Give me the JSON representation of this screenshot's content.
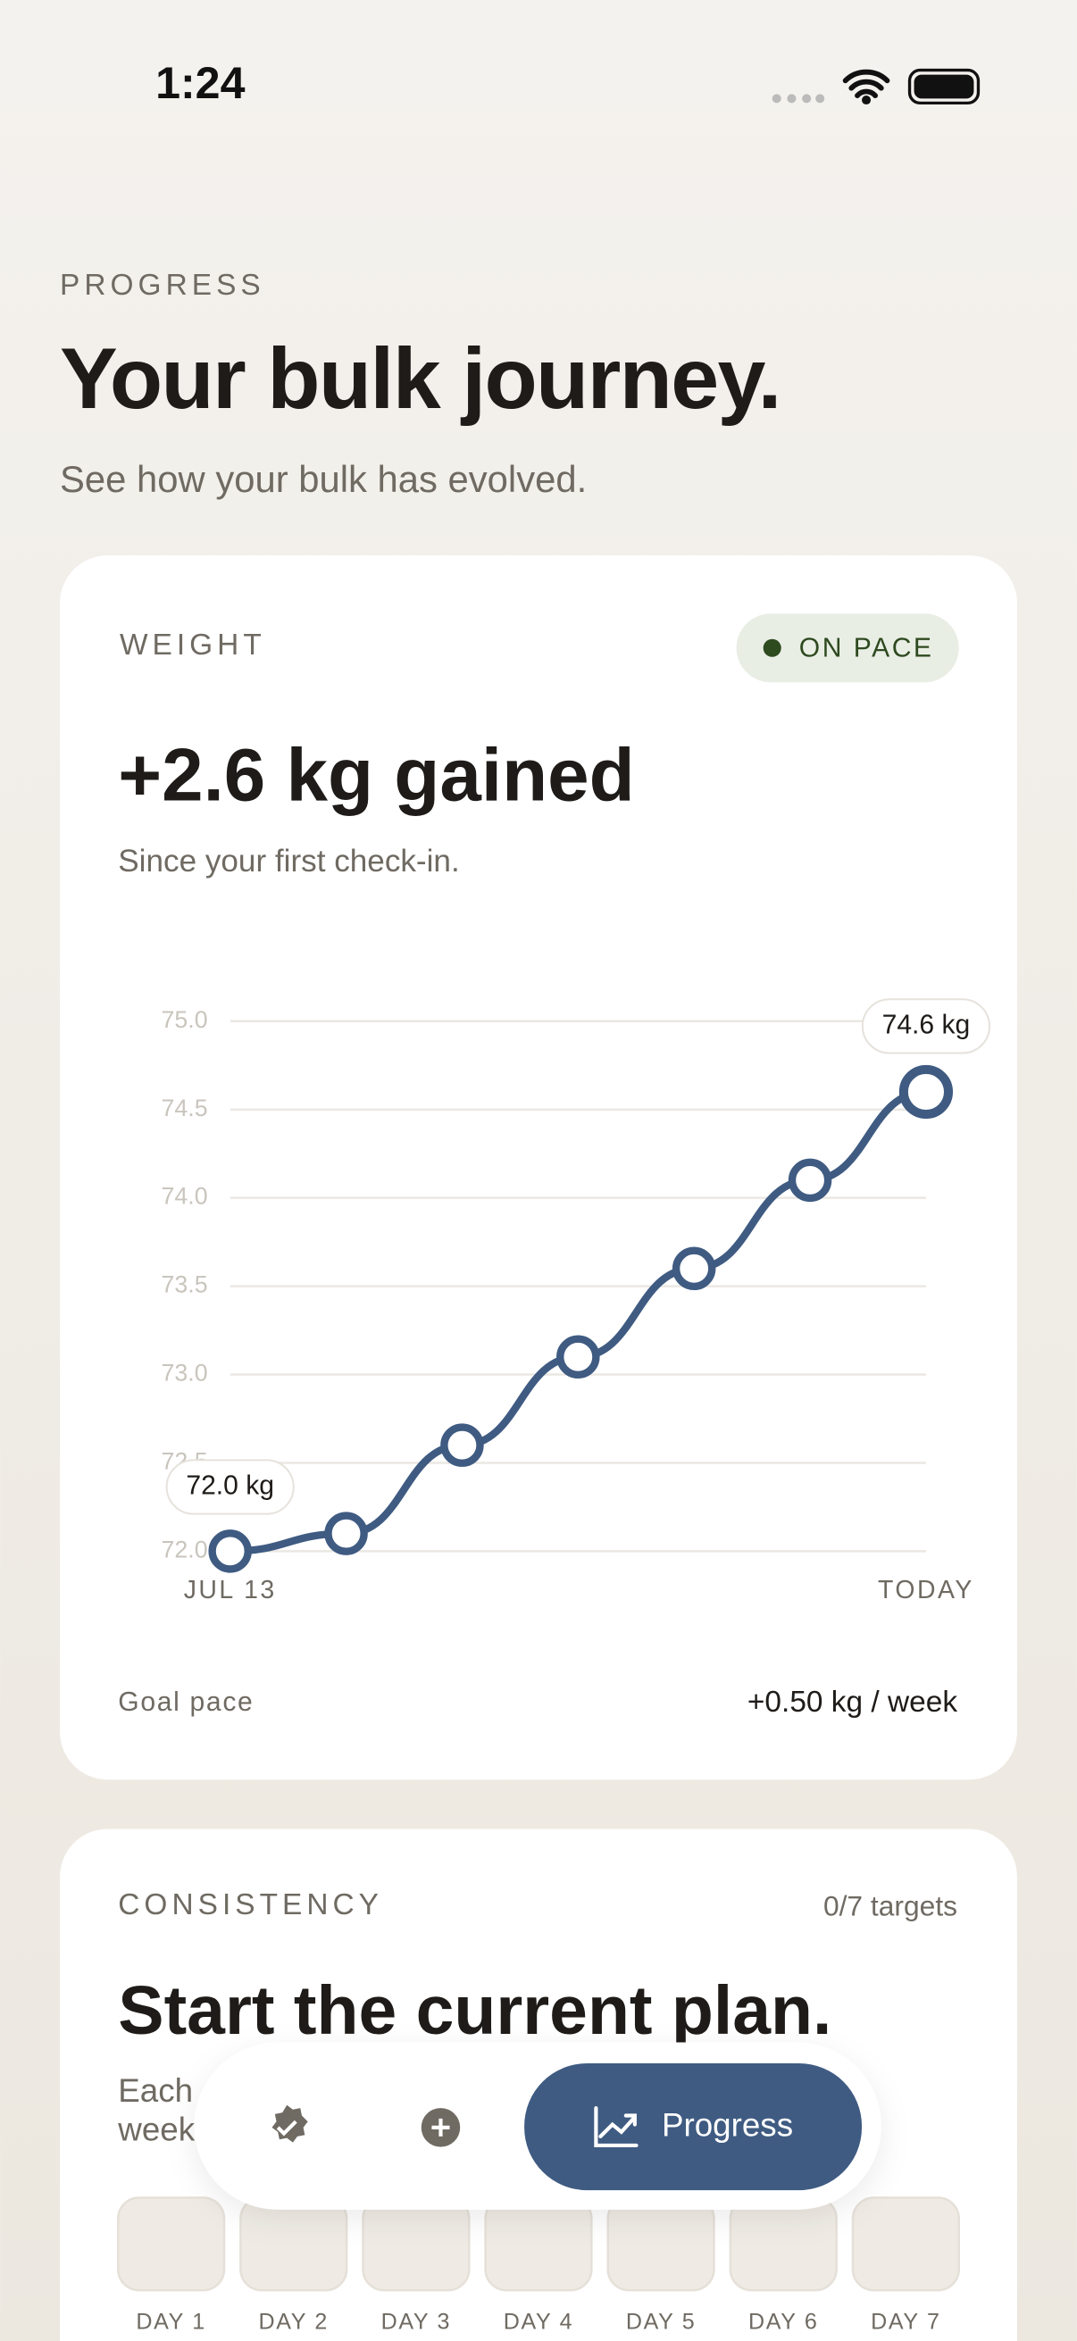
{
  "status_bar": {
    "time": "1:24"
  },
  "header": {
    "eyebrow": "PROGRESS",
    "title": "Your bulk journey.",
    "subtitle": "See how your bulk has evolved."
  },
  "weight_card": {
    "label": "WEIGHT",
    "badge": "ON PACE",
    "headline": "+2.6 kg gained",
    "caption": "Since your first check-in.",
    "goal_pace_label": "Goal pace",
    "goal_pace_value": "+0.50 kg / week"
  },
  "chart_data": {
    "type": "line",
    "categories": [
      "JUL 13",
      null,
      null,
      null,
      null,
      null,
      "TODAY"
    ],
    "values": [
      72.0,
      72.1,
      72.6,
      73.1,
      73.6,
      74.1,
      74.6
    ],
    "value_labels": [
      "72.0 kg",
      null,
      null,
      null,
      null,
      null,
      "74.6 kg"
    ],
    "color": "#3f5b82",
    "ylim": [
      72,
      75
    ],
    "yticks": [
      {
        "value": 72,
        "label": "72.0"
      },
      72.5,
      {
        "value": 73,
        "label": "73.0"
      },
      73.5,
      {
        "value": 74,
        "label": "74.0"
      },
      74.5,
      {
        "value": 75,
        "label": "75.0"
      }
    ],
    "grid": true
  },
  "consistency_card": {
    "label": "CONSISTENCY",
    "count": "0/7 targets",
    "headline": "Start the current plan.",
    "caption_lines": [
      "Each",
      "week"
    ],
    "days": [
      "DAY 1",
      "DAY 2",
      "DAY 3",
      "DAY 4",
      "DAY 5",
      "DAY 6",
      "DAY 7"
    ]
  },
  "nav": {
    "active": "Progress"
  }
}
